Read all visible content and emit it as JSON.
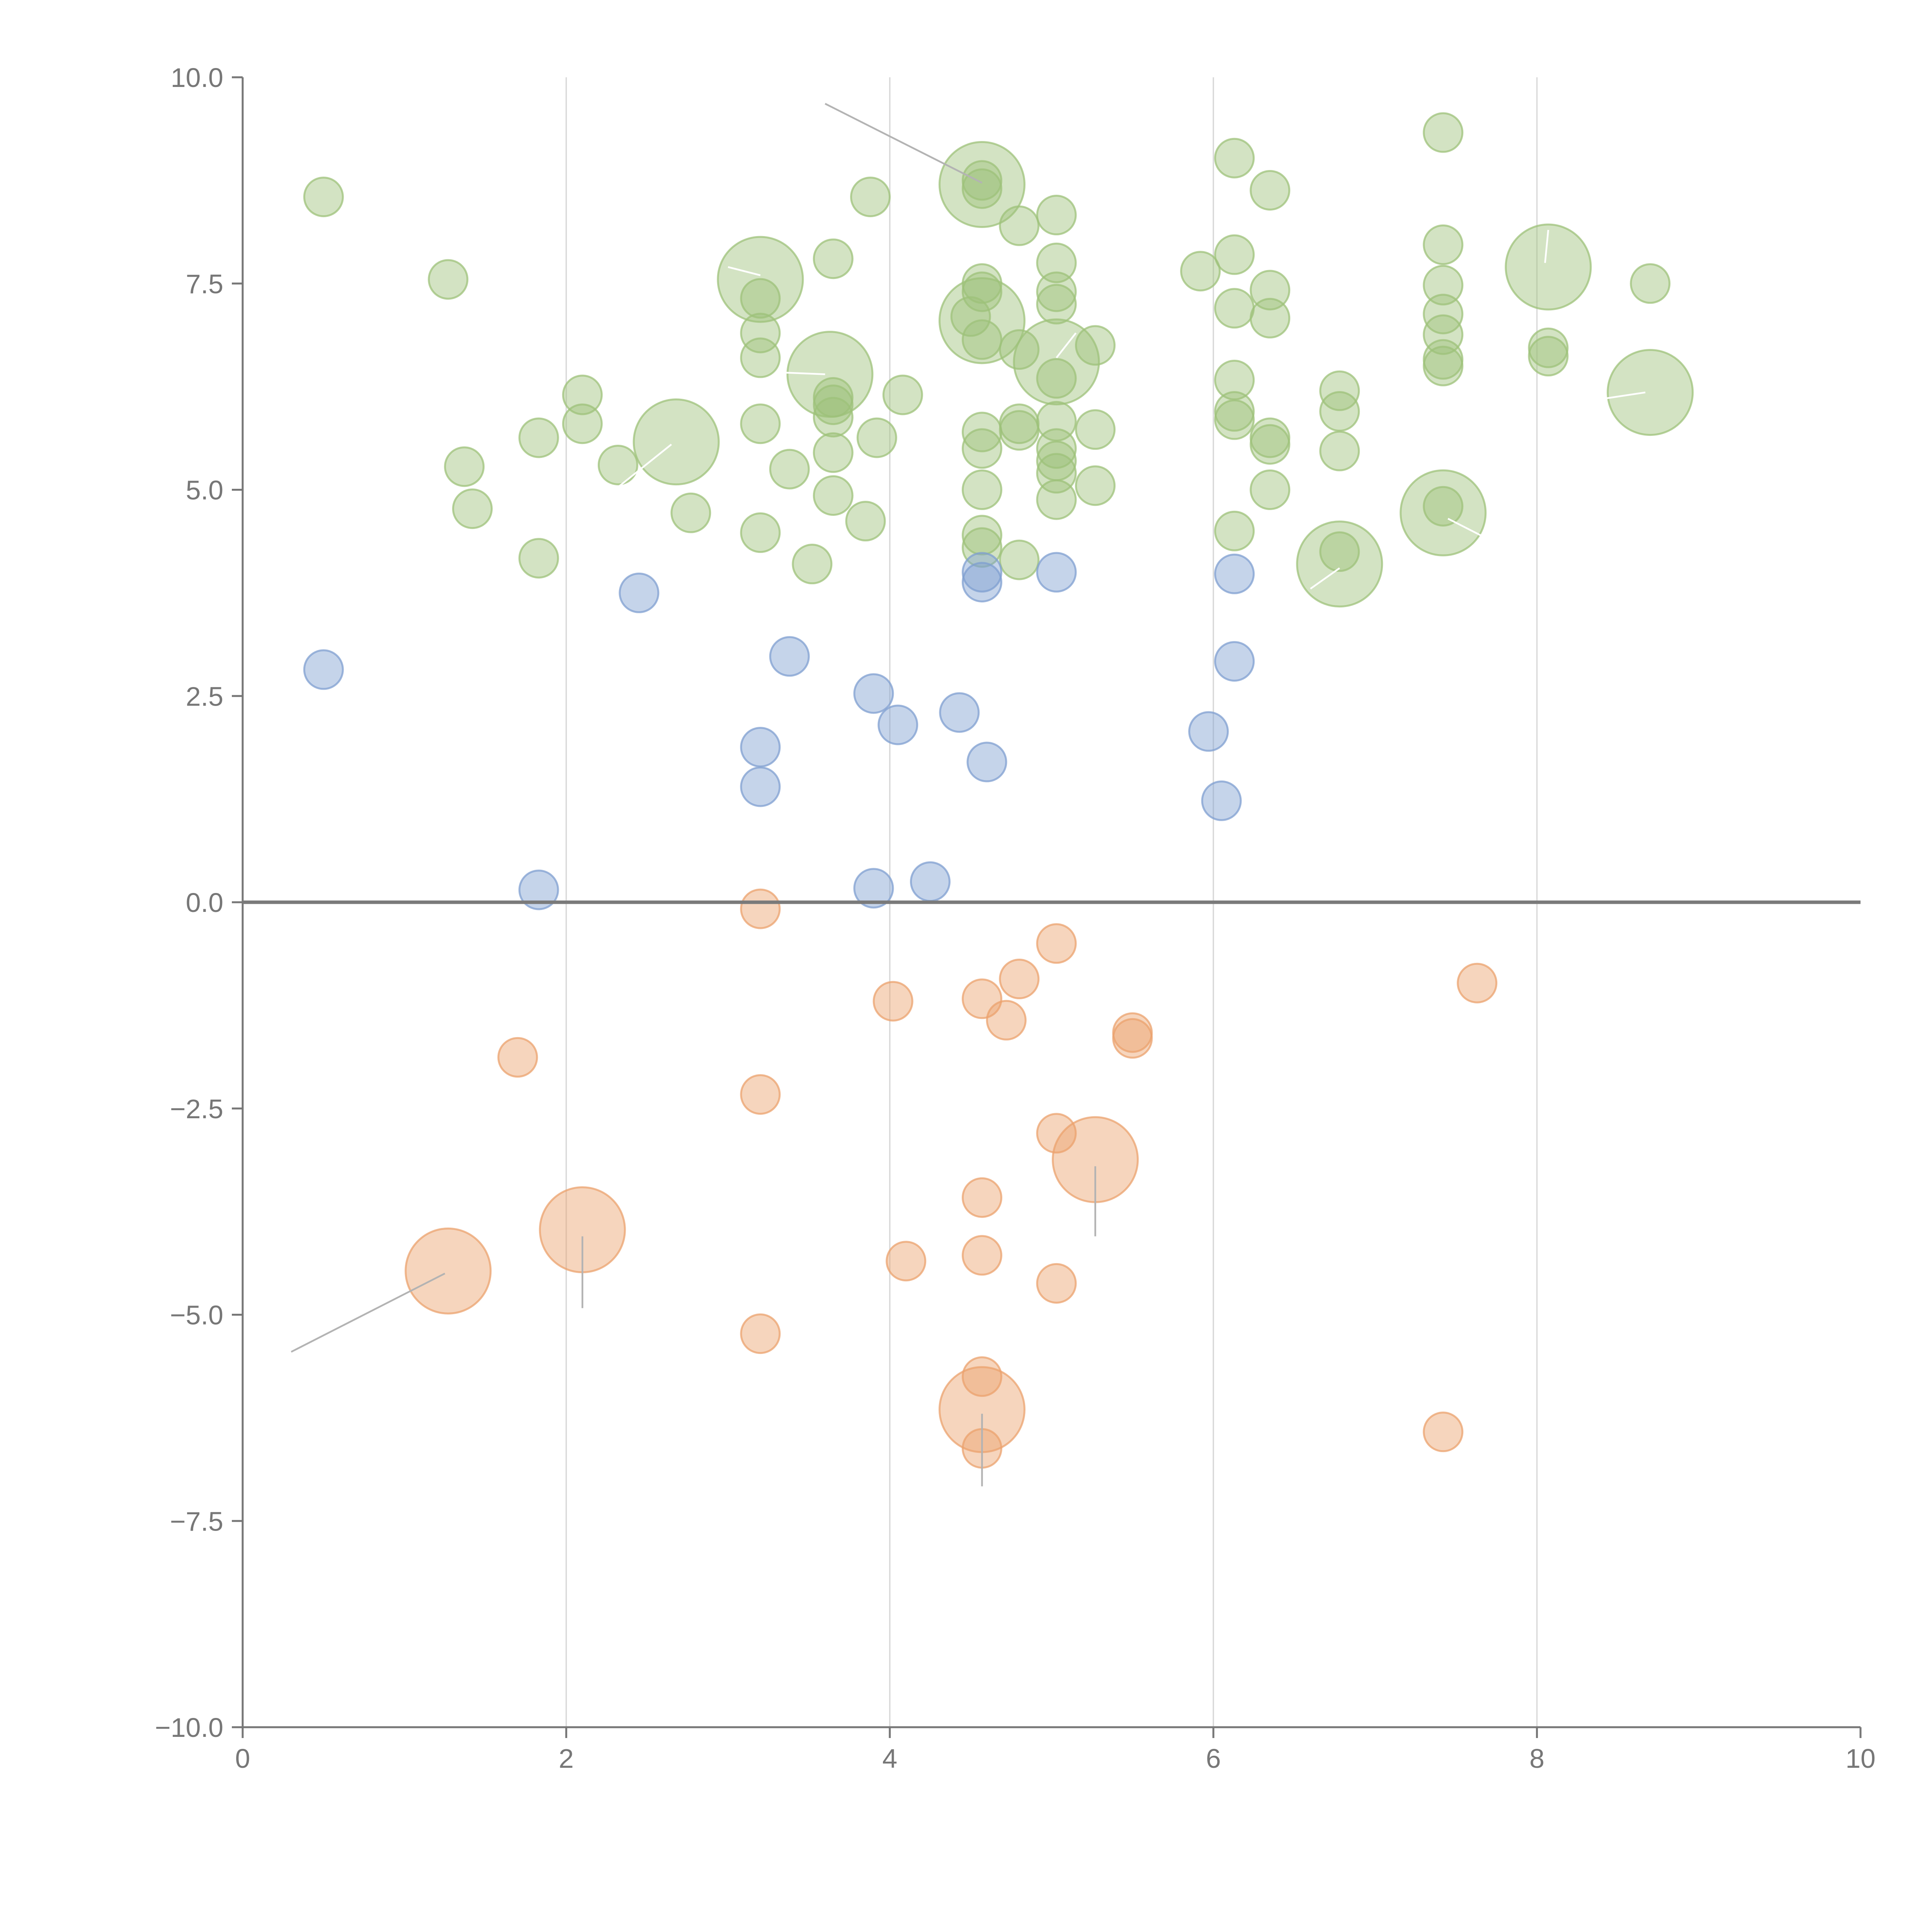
{
  "chart_data": {
    "type": "scatter",
    "title": "",
    "xlabel": "",
    "ylabel": "",
    "xlim": [
      0,
      10
    ],
    "ylim": [
      -10,
      10
    ],
    "x_ticks": [
      0,
      2,
      4,
      6,
      8,
      10
    ],
    "x_tick_labels": [
      "0",
      "2",
      "4",
      "6",
      "8",
      "10"
    ],
    "y_ticks": [
      10,
      7.5,
      5,
      2.5,
      0,
      -2.5,
      -5,
      -7.5,
      -10
    ],
    "y_tick_labels": [
      "10.0",
      "7.5",
      "5.0",
      "2.5",
      "0.0",
      "−2.5",
      "−5.0",
      "−7.5",
      "−10.0"
    ],
    "vertical_gridlines_at": [
      2,
      4,
      6,
      8
    ],
    "reference_line_y": 0,
    "colors": {
      "green": "#9dc27a",
      "blue": "#7f9fd0",
      "orange": "#eba26d",
      "axis": "#777777"
    },
    "series": [
      {
        "name": "green",
        "color": "#9dc27a",
        "points": [
          [
            0.5,
            8.55,
            "s"
          ],
          [
            1.27,
            7.55,
            "s"
          ],
          [
            1.37,
            5.28,
            "s"
          ],
          [
            1.42,
            4.77,
            "s"
          ],
          [
            1.83,
            5.63,
            "s"
          ],
          [
            1.83,
            4.17,
            "s"
          ],
          [
            2.1,
            6.15,
            "s"
          ],
          [
            2.1,
            5.8,
            "s"
          ],
          [
            2.32,
            5.3,
            "s"
          ],
          [
            2.68,
            5.58,
            "l"
          ],
          [
            2.77,
            4.72,
            "s"
          ],
          [
            3.2,
            7.55,
            "l"
          ],
          [
            3.2,
            7.32,
            "s"
          ],
          [
            3.2,
            6.9,
            "s"
          ],
          [
            3.2,
            6.6,
            "s"
          ],
          [
            3.2,
            5.8,
            "s"
          ],
          [
            3.2,
            4.48,
            "s"
          ],
          [
            3.38,
            5.25,
            "s"
          ],
          [
            3.52,
            4.1,
            "s"
          ],
          [
            3.65,
            7.8,
            "s"
          ],
          [
            3.63,
            6.4,
            "l"
          ],
          [
            3.65,
            6.12,
            "s"
          ],
          [
            3.65,
            6.03,
            "s"
          ],
          [
            3.65,
            5.88,
            "s"
          ],
          [
            3.65,
            5.45,
            "s"
          ],
          [
            3.65,
            4.93,
            "s"
          ],
          [
            3.85,
            4.62,
            "s"
          ],
          [
            3.88,
            8.55,
            "s"
          ],
          [
            3.92,
            5.63,
            "s"
          ],
          [
            4.08,
            6.15,
            "s"
          ],
          [
            4.57,
            8.7,
            "l"
          ],
          [
            4.57,
            8.75,
            "s"
          ],
          [
            4.57,
            8.65,
            "s"
          ],
          [
            4.57,
            7.5,
            "s"
          ],
          [
            4.57,
            7.4,
            "s"
          ],
          [
            4.57,
            7.05,
            "l"
          ],
          [
            4.5,
            7.1,
            "s"
          ],
          [
            4.57,
            6.82,
            "s"
          ],
          [
            4.57,
            5.7,
            "s"
          ],
          [
            4.57,
            5.5,
            "s"
          ],
          [
            4.57,
            5.0,
            "s"
          ],
          [
            4.57,
            4.45,
            "s"
          ],
          [
            4.57,
            4.3,
            "s"
          ],
          [
            4.8,
            8.2,
            "s"
          ],
          [
            4.8,
            6.7,
            "s"
          ],
          [
            4.8,
            5.8,
            "s"
          ],
          [
            4.8,
            5.72,
            "s"
          ],
          [
            4.8,
            4.15,
            "s"
          ],
          [
            5.03,
            8.33,
            "s"
          ],
          [
            5.03,
            7.75,
            "s"
          ],
          [
            5.03,
            7.4,
            "s"
          ],
          [
            5.03,
            7.25,
            "s"
          ],
          [
            5.03,
            6.55,
            "l"
          ],
          [
            5.03,
            6.35,
            "s"
          ],
          [
            5.03,
            5.83,
            "s"
          ],
          [
            5.03,
            5.5,
            "s"
          ],
          [
            5.03,
            5.35,
            "s"
          ],
          [
            5.03,
            5.2,
            "s"
          ],
          [
            5.03,
            4.88,
            "s"
          ],
          [
            5.27,
            6.75,
            "s"
          ],
          [
            5.27,
            5.73,
            "s"
          ],
          [
            5.27,
            5.05,
            "s"
          ],
          [
            5.92,
            7.65,
            "s"
          ],
          [
            6.13,
            9.02,
            "s"
          ],
          [
            6.13,
            7.85,
            "s"
          ],
          [
            6.13,
            7.2,
            "s"
          ],
          [
            6.13,
            6.33,
            "s"
          ],
          [
            6.13,
            5.95,
            "s"
          ],
          [
            6.13,
            5.85,
            "s"
          ],
          [
            6.13,
            4.5,
            "s"
          ],
          [
            6.35,
            8.63,
            "s"
          ],
          [
            6.35,
            7.42,
            "s"
          ],
          [
            6.35,
            7.08,
            "s"
          ],
          [
            6.35,
            5.63,
            "s"
          ],
          [
            6.35,
            5.55,
            "s"
          ],
          [
            6.35,
            5.0,
            "s"
          ],
          [
            6.78,
            6.2,
            "s"
          ],
          [
            6.78,
            5.95,
            "s"
          ],
          [
            6.78,
            5.47,
            "s"
          ],
          [
            6.78,
            4.25,
            "s"
          ],
          [
            6.78,
            4.1,
            "l"
          ],
          [
            7.42,
            9.33,
            "s"
          ],
          [
            7.42,
            7.97,
            "s"
          ],
          [
            7.42,
            7.48,
            "s"
          ],
          [
            7.42,
            7.13,
            "s"
          ],
          [
            7.42,
            6.88,
            "s"
          ],
          [
            7.42,
            6.58,
            "s"
          ],
          [
            7.42,
            6.5,
            "s"
          ],
          [
            7.42,
            4.8,
            "s"
          ],
          [
            7.42,
            4.72,
            "l"
          ],
          [
            8.07,
            7.7,
            "l"
          ],
          [
            8.07,
            6.72,
            "s"
          ],
          [
            8.07,
            6.62,
            "s"
          ],
          [
            8.7,
            7.5,
            "s"
          ],
          [
            8.7,
            6.18,
            "l"
          ]
        ]
      },
      {
        "name": "blue",
        "color": "#7f9fd0",
        "points": [
          [
            0.5,
            2.82,
            "s"
          ],
          [
            1.83,
            0.15,
            "s"
          ],
          [
            2.45,
            3.75,
            "s"
          ],
          [
            3.2,
            1.88,
            "s"
          ],
          [
            3.2,
            1.4,
            "s"
          ],
          [
            3.38,
            2.98,
            "s"
          ],
          [
            3.9,
            2.53,
            "s"
          ],
          [
            3.9,
            0.17,
            "s"
          ],
          [
            4.05,
            2.15,
            "s"
          ],
          [
            4.25,
            0.25,
            "s"
          ],
          [
            4.43,
            2.3,
            "s"
          ],
          [
            4.57,
            4.0,
            "s"
          ],
          [
            4.57,
            3.88,
            "s"
          ],
          [
            4.6,
            1.7,
            "s"
          ],
          [
            5.03,
            4.0,
            "s"
          ],
          [
            5.97,
            2.07,
            "s"
          ],
          [
            6.05,
            1.23,
            "s"
          ],
          [
            6.13,
            3.98,
            "s"
          ],
          [
            6.13,
            2.92,
            "s"
          ]
        ]
      },
      {
        "name": "orange",
        "color": "#eba26d",
        "points": [
          [
            1.27,
            -4.47,
            "l"
          ],
          [
            1.7,
            -1.88,
            "s"
          ],
          [
            2.1,
            -3.97,
            "l"
          ],
          [
            3.2,
            -0.08,
            "s"
          ],
          [
            3.2,
            -2.33,
            "s"
          ],
          [
            3.2,
            -5.23,
            "s"
          ],
          [
            4.02,
            -1.2,
            "s"
          ],
          [
            4.1,
            -4.35,
            "s"
          ],
          [
            4.57,
            -1.17,
            "s"
          ],
          [
            4.57,
            -3.58,
            "s"
          ],
          [
            4.57,
            -4.28,
            "s"
          ],
          [
            4.57,
            -5.75,
            "s"
          ],
          [
            4.57,
            -6.15,
            "l"
          ],
          [
            4.57,
            -6.62,
            "s"
          ],
          [
            4.72,
            -1.43,
            "s"
          ],
          [
            4.8,
            -0.93,
            "s"
          ],
          [
            5.03,
            -0.5,
            "s"
          ],
          [
            5.03,
            -2.8,
            "s"
          ],
          [
            5.03,
            -4.62,
            "s"
          ],
          [
            5.27,
            -3.12,
            "l"
          ],
          [
            5.5,
            -1.58,
            "s"
          ],
          [
            5.5,
            -1.65,
            "s"
          ],
          [
            7.42,
            -6.42,
            "s"
          ],
          [
            7.63,
            -0.98,
            "s"
          ]
        ]
      }
    ],
    "leader_lines": [
      {
        "color": "gray",
        "from": [
          3.6,
          9.68
        ],
        "to": [
          4.57,
          8.72
        ]
      },
      {
        "color": "gray",
        "from": [
          0.3,
          -5.45
        ],
        "to": [
          1.25,
          -4.5
        ]
      },
      {
        "color": "gray",
        "from": [
          2.1,
          -4.05
        ],
        "to": [
          2.1,
          -4.92
        ]
      },
      {
        "color": "gray",
        "from": [
          5.27,
          -3.2
        ],
        "to": [
          5.27,
          -4.05
        ]
      },
      {
        "color": "gray",
        "from": [
          4.57,
          -6.2
        ],
        "to": [
          4.57,
          -7.08
        ]
      },
      {
        "color": "white",
        "from": [
          2.3,
          5.0
        ],
        "to": [
          2.65,
          5.55
        ]
      },
      {
        "color": "white",
        "from": [
          3.35,
          6.42
        ],
        "to": [
          3.6,
          6.4
        ]
      },
      {
        "color": "white",
        "from": [
          3.0,
          7.7
        ],
        "to": [
          3.2,
          7.6
        ]
      },
      {
        "color": "white",
        "from": [
          5.03,
          6.6
        ],
        "to": [
          5.15,
          6.9
        ]
      },
      {
        "color": "white",
        "from": [
          6.6,
          3.8
        ],
        "to": [
          6.78,
          4.05
        ]
      },
      {
        "color": "white",
        "from": [
          7.45,
          4.65
        ],
        "to": [
          7.7,
          4.4
        ]
      },
      {
        "color": "white",
        "from": [
          8.05,
          7.75
        ],
        "to": [
          8.07,
          8.15
        ]
      },
      {
        "color": "white",
        "from": [
          8.4,
          6.1
        ],
        "to": [
          8.67,
          6.18
        ]
      }
    ]
  }
}
